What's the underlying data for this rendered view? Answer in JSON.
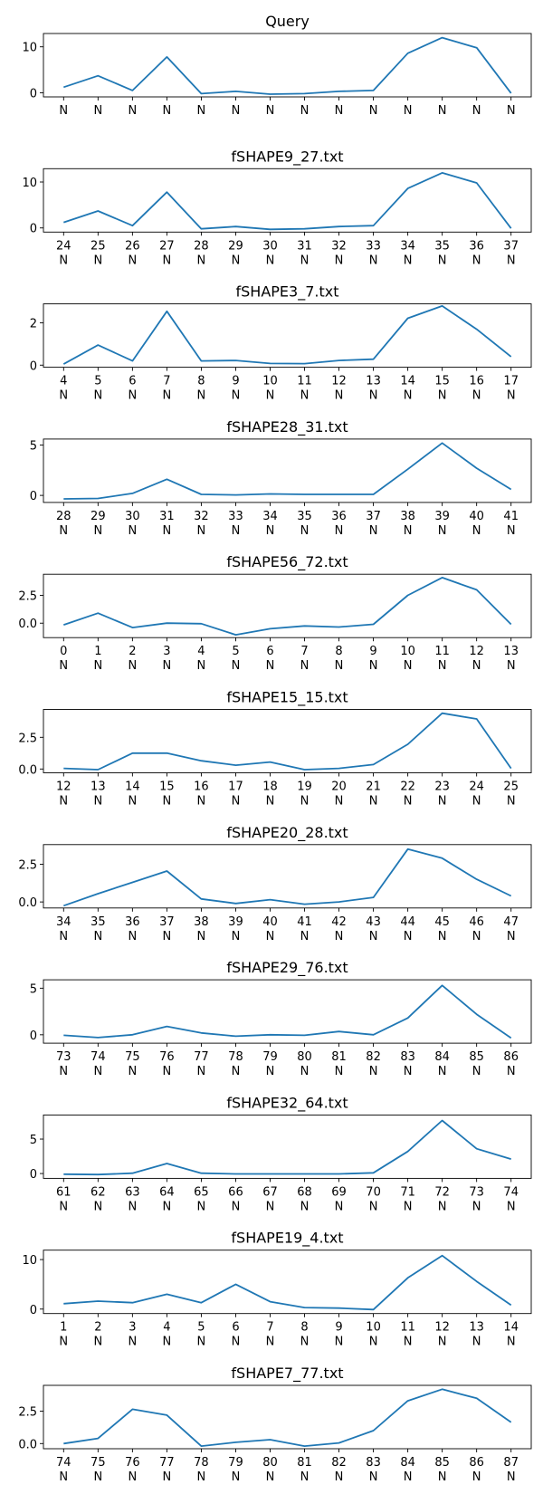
{
  "colors": {
    "line": "#1f77b4",
    "axes": "#000000",
    "background": "#ffffff"
  },
  "chart_data": [
    {
      "type": "line",
      "title": "Query",
      "x_ticks": [],
      "x_letters": [
        "N",
        "N",
        "N",
        "N",
        "N",
        "N",
        "N",
        "N",
        "N",
        "N",
        "N",
        "N",
        "N",
        "N"
      ],
      "y_ticks": [
        0,
        10
      ],
      "y_tick_labels": [
        "0",
        "10"
      ],
      "ylim": [
        -0.9,
        12.9
      ],
      "values": [
        1.2,
        3.7,
        0.5,
        7.8,
        -0.2,
        0.3,
        -0.3,
        -0.2,
        0.3,
        0.5,
        8.6,
        12.0,
        9.8,
        -0.1
      ]
    },
    {
      "type": "line",
      "title": "fSHAPE9_27.txt",
      "x_ticks": [
        "24",
        "25",
        "26",
        "27",
        "28",
        "29",
        "30",
        "31",
        "32",
        "33",
        "34",
        "35",
        "36",
        "37"
      ],
      "x_letters": [
        "N",
        "N",
        "N",
        "N",
        "N",
        "N",
        "N",
        "N",
        "N",
        "N",
        "N",
        "N",
        "N",
        "N"
      ],
      "y_ticks": [
        0,
        10
      ],
      "y_tick_labels": [
        "0",
        "10"
      ],
      "ylim": [
        -0.9,
        12.9
      ],
      "values": [
        1.2,
        3.7,
        0.5,
        7.8,
        -0.2,
        0.3,
        -0.3,
        -0.2,
        0.3,
        0.5,
        8.6,
        12.0,
        9.8,
        -0.1
      ]
    },
    {
      "type": "line",
      "title": "fSHAPE3_7.txt",
      "x_ticks": [
        "4",
        "5",
        "6",
        "7",
        "8",
        "9",
        "10",
        "11",
        "12",
        "13",
        "14",
        "15",
        "16",
        "17"
      ],
      "x_letters": [
        "N",
        "N",
        "N",
        "N",
        "N",
        "N",
        "N",
        "N",
        "N",
        "N",
        "N",
        "N",
        "N",
        "N"
      ],
      "y_ticks": [
        0,
        2
      ],
      "y_tick_labels": [
        "0",
        "2"
      ],
      "ylim": [
        -0.1,
        2.9
      ],
      "values": [
        0.05,
        0.95,
        0.2,
        2.55,
        0.2,
        0.22,
        0.08,
        0.07,
        0.22,
        0.28,
        2.22,
        2.8,
        1.7,
        0.4
      ]
    },
    {
      "type": "line",
      "title": "fSHAPE28_31.txt",
      "x_ticks": [
        "28",
        "29",
        "30",
        "31",
        "32",
        "33",
        "34",
        "35",
        "36",
        "37",
        "38",
        "39",
        "40",
        "41"
      ],
      "x_letters": [
        "N",
        "N",
        "N",
        "N",
        "N",
        "N",
        "N",
        "N",
        "N",
        "N",
        "N",
        "N",
        "N",
        "N"
      ],
      "y_ticks": [
        0,
        5
      ],
      "y_tick_labels": [
        "0",
        "5"
      ],
      "ylim": [
        -0.7,
        5.6
      ],
      "values": [
        -0.35,
        -0.3,
        0.2,
        1.6,
        0.1,
        0.05,
        0.15,
        0.1,
        0.1,
        0.1,
        2.6,
        5.2,
        2.7,
        0.6
      ]
    },
    {
      "type": "line",
      "title": "fSHAPE56_72.txt",
      "x_ticks": [
        "0",
        "1",
        "2",
        "3",
        "4",
        "5",
        "6",
        "7",
        "8",
        "9",
        "10",
        "11",
        "12",
        "13"
      ],
      "x_letters": [
        "N",
        "N",
        "N",
        "N",
        "N",
        "N",
        "N",
        "N",
        "N",
        "N",
        "N",
        "N",
        "N",
        "N"
      ],
      "y_ticks": [
        0,
        2.5
      ],
      "y_tick_labels": [
        "0.0",
        "2.5"
      ],
      "ylim": [
        -1.3,
        4.4
      ],
      "values": [
        -0.15,
        0.9,
        -0.4,
        0.0,
        -0.05,
        -1.05,
        -0.5,
        -0.25,
        -0.35,
        -0.1,
        2.5,
        4.1,
        3.0,
        -0.1
      ]
    },
    {
      "type": "line",
      "title": "fSHAPE15_15.txt",
      "x_ticks": [
        "12",
        "13",
        "14",
        "15",
        "16",
        "17",
        "18",
        "19",
        "20",
        "21",
        "22",
        "23",
        "24",
        "25"
      ],
      "x_letters": [
        "N",
        "N",
        "N",
        "N",
        "N",
        "N",
        "N",
        "N",
        "N",
        "N",
        "N",
        "N",
        "N",
        "N"
      ],
      "y_ticks": [
        0,
        2.5
      ],
      "y_tick_labels": [
        "0.0",
        "2.5"
      ],
      "ylim": [
        -0.3,
        4.7
      ],
      "values": [
        0.05,
        -0.05,
        1.25,
        1.25,
        0.65,
        0.3,
        0.55,
        -0.05,
        0.05,
        0.35,
        1.95,
        4.4,
        3.95,
        0.05
      ]
    },
    {
      "type": "line",
      "title": "fSHAPE20_28.txt",
      "x_ticks": [
        "34",
        "35",
        "36",
        "37",
        "38",
        "39",
        "40",
        "41",
        "42",
        "43",
        "44",
        "45",
        "46",
        "47"
      ],
      "x_letters": [
        "N",
        "N",
        "N",
        "N",
        "N",
        "N",
        "N",
        "N",
        "N",
        "N",
        "N",
        "N",
        "N",
        "N"
      ],
      "y_ticks": [
        0,
        2.5
      ],
      "y_tick_labels": [
        "0.0",
        "2.5"
      ],
      "ylim": [
        -0.4,
        3.8
      ],
      "values": [
        -0.25,
        0.55,
        1.3,
        2.05,
        0.2,
        -0.1,
        0.15,
        -0.15,
        0.0,
        0.3,
        3.5,
        2.9,
        1.5,
        0.4
      ]
    },
    {
      "type": "line",
      "title": "fSHAPE29_76.txt",
      "x_ticks": [
        "73",
        "74",
        "75",
        "76",
        "77",
        "78",
        "79",
        "80",
        "81",
        "82",
        "83",
        "84",
        "85",
        "86"
      ],
      "x_letters": [
        "N",
        "N",
        "N",
        "N",
        "N",
        "N",
        "N",
        "N",
        "N",
        "N",
        "N",
        "N",
        "N",
        "N"
      ],
      "y_ticks": [
        0,
        5
      ],
      "y_tick_labels": [
        "0",
        "5"
      ],
      "ylim": [
        -0.9,
        5.9
      ],
      "values": [
        -0.05,
        -0.3,
        0.0,
        0.9,
        0.2,
        -0.15,
        0.0,
        -0.05,
        0.35,
        0.0,
        1.8,
        5.3,
        2.2,
        -0.35
      ]
    },
    {
      "type": "line",
      "title": "fSHAPE32_64.txt",
      "x_ticks": [
        "61",
        "62",
        "63",
        "64",
        "65",
        "66",
        "67",
        "68",
        "69",
        "70",
        "71",
        "72",
        "73",
        "74"
      ],
      "x_letters": [
        "N",
        "N",
        "N",
        "N",
        "N",
        "N",
        "N",
        "N",
        "N",
        "N",
        "N",
        "N",
        "N",
        "N"
      ],
      "y_ticks": [
        0,
        5
      ],
      "y_tick_labels": [
        "0",
        "5"
      ],
      "ylim": [
        -0.7,
        8.5
      ],
      "values": [
        -0.1,
        -0.15,
        0.05,
        1.45,
        0.05,
        -0.05,
        -0.05,
        -0.05,
        -0.05,
        0.1,
        3.2,
        7.7,
        3.6,
        2.1
      ]
    },
    {
      "type": "line",
      "title": "fSHAPE19_4.txt",
      "x_ticks": [
        "1",
        "2",
        "3",
        "4",
        "5",
        "6",
        "7",
        "8",
        "9",
        "10",
        "11",
        "12",
        "13",
        "14"
      ],
      "x_letters": [
        "N",
        "N",
        "N",
        "N",
        "N",
        "N",
        "N",
        "N",
        "N",
        "N",
        "N",
        "N",
        "N",
        "N"
      ],
      "y_ticks": [
        0,
        10
      ],
      "y_tick_labels": [
        "0",
        "10"
      ],
      "ylim": [
        -0.9,
        11.9
      ],
      "values": [
        1.1,
        1.6,
        1.3,
        3.0,
        1.3,
        5.0,
        1.5,
        0.3,
        0.2,
        -0.1,
        6.3,
        10.8,
        5.6,
        0.8
      ]
    },
    {
      "type": "line",
      "title": "fSHAPE7_77.txt",
      "x_ticks": [
        "74",
        "75",
        "76",
        "77",
        "78",
        "79",
        "80",
        "81",
        "82",
        "83",
        "84",
        "85",
        "86",
        "87"
      ],
      "x_letters": [
        "N",
        "N",
        "N",
        "N",
        "N",
        "N",
        "N",
        "N",
        "N",
        "N",
        "N",
        "N",
        "N",
        "N"
      ],
      "y_ticks": [
        0,
        2.5
      ],
      "y_tick_labels": [
        "0.0",
        "2.5"
      ],
      "ylim": [
        -0.4,
        4.5
      ],
      "values": [
        0.0,
        0.4,
        2.65,
        2.2,
        -0.2,
        0.1,
        0.3,
        -0.2,
        0.05,
        1.0,
        3.3,
        4.2,
        3.5,
        1.65
      ]
    }
  ]
}
